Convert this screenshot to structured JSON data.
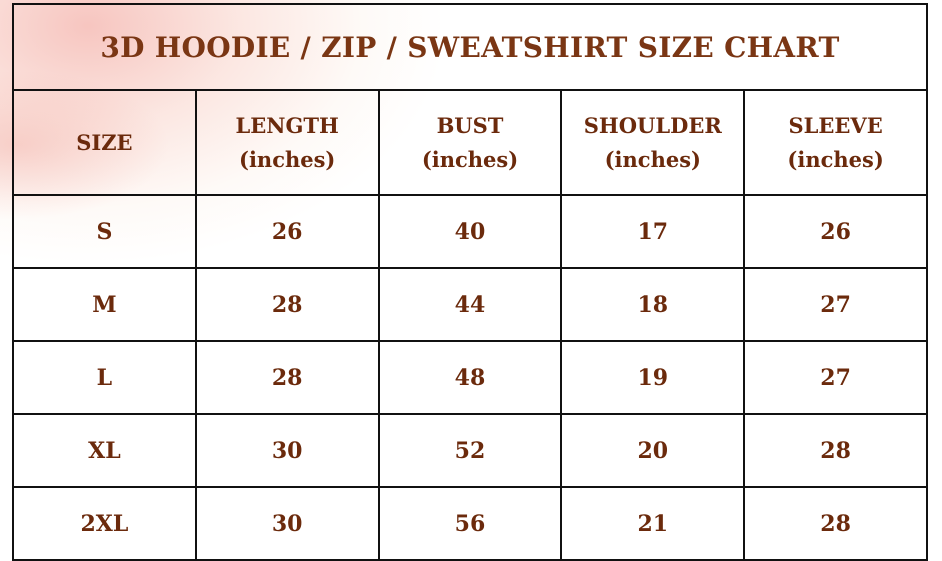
{
  "title": "3D HOODIE / ZIP / SWEATSHIRT SIZE CHART",
  "headers": [
    {
      "label": "SIZE",
      "unit": ""
    },
    {
      "label": "LENGTH",
      "unit": "(inches)"
    },
    {
      "label": "BUST",
      "unit": "(inches)"
    },
    {
      "label": "SHOULDER",
      "unit": "(inches)"
    },
    {
      "label": "SLEEVE",
      "unit": "(inches)"
    }
  ],
  "rows": [
    [
      "S",
      "26",
      "40",
      "17",
      "26"
    ],
    [
      "M",
      "28",
      "44",
      "18",
      "27"
    ],
    [
      "L",
      "28",
      "48",
      "19",
      "27"
    ],
    [
      "XL",
      "30",
      "52",
      "20",
      "28"
    ],
    [
      "2XL",
      "30",
      "56",
      "21",
      "28"
    ]
  ],
  "colors": {
    "text": "#6b2a0c",
    "border": "#111111",
    "wash": "#f09890"
  }
}
